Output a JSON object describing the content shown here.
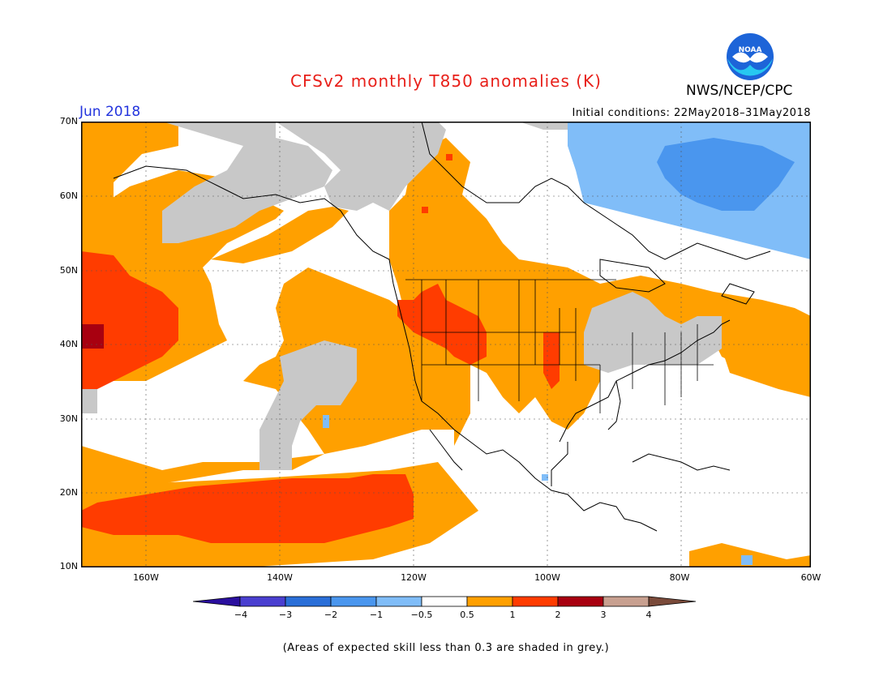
{
  "title": "CFSv2 monthly T850 anomalies (K)",
  "organization": "NWS/NCEP/CPC",
  "logo_text": "NOAA",
  "valid_month": "Jun 2018",
  "initial_conditions": "Initial conditions: 22May2018–31May2018",
  "lat_labels": [
    "70N",
    "60N",
    "50N",
    "40N",
    "30N",
    "20N",
    "10N"
  ],
  "lon_labels": [
    "160W",
    "140W",
    "120W",
    "100W",
    "80W",
    "60W"
  ],
  "colorbar": {
    "labels": [
      "−4",
      "−3",
      "−2",
      "−1",
      "−0.5",
      "0.5",
      "1",
      "2",
      "3",
      "4"
    ],
    "colors": [
      "#2a0f9e",
      "#4a3fd0",
      "#2a6fd8",
      "#4a96ee",
      "#80bdf8",
      "#ffffff",
      "#ffa000",
      "#ff3c00",
      "#a80010",
      "#c8a090",
      "#7a4a3a"
    ]
  },
  "footnote": "(Areas of expected skill less than 0.3 are shaded in grey.)",
  "colors": {
    "title": "#e8201a",
    "month": "#2233dd",
    "skill_grey": "#c8c8c8",
    "warm_0_5_1": "#ffa000",
    "warm_1_2": "#ff3c00",
    "warm_2_3": "#a80010",
    "cool_m1_m0_5": "#80bdf8",
    "cool_m2_m1": "#4a96ee"
  }
}
